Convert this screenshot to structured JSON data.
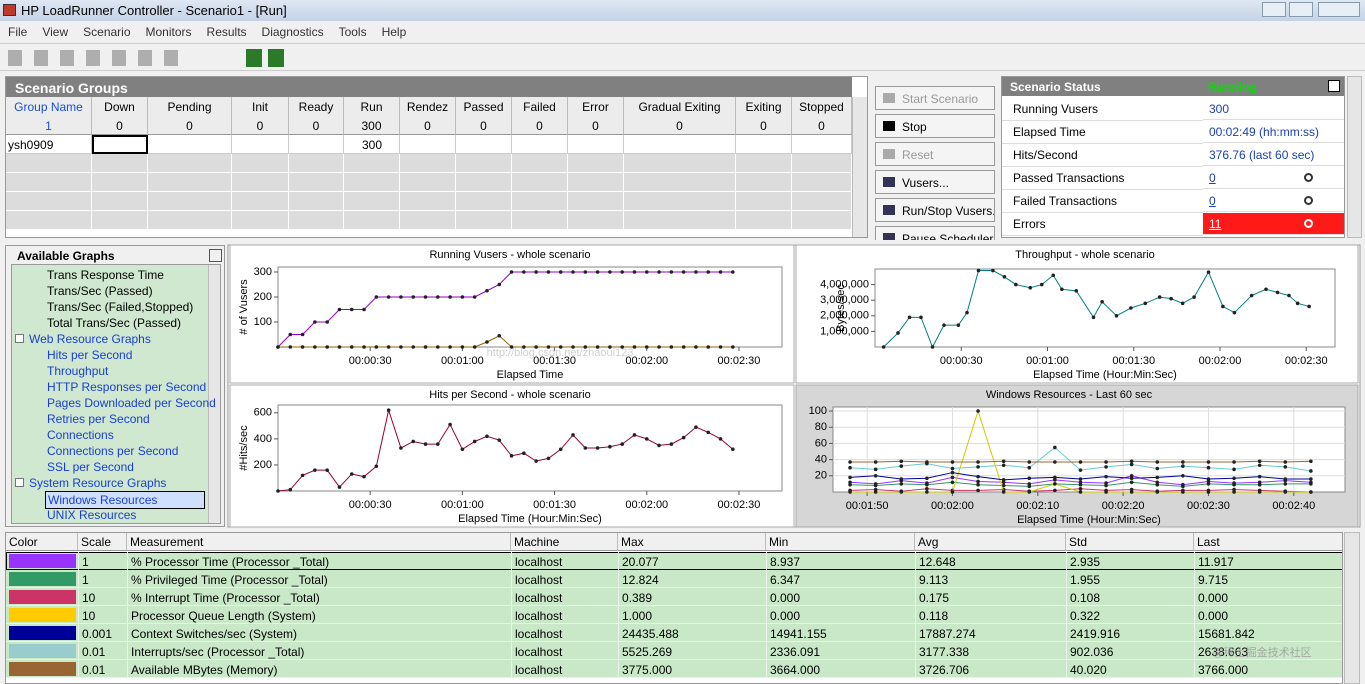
{
  "window": {
    "title": "HP LoadRunner Controller - Scenario1 - [Run]"
  },
  "menu": [
    "File",
    "View",
    "Scenario",
    "Monitors",
    "Results",
    "Diagnostics",
    "Tools",
    "Help"
  ],
  "scenario_groups": {
    "title": "Scenario Groups",
    "columns": [
      "Group Name",
      "Down",
      "Pending",
      "Init",
      "Ready",
      "Run",
      "Rendez",
      "Passed",
      "Failed",
      "Error",
      "Gradual Exiting",
      "Exiting",
      "Stopped"
    ],
    "totals": [
      1,
      0,
      0,
      0,
      0,
      300,
      0,
      0,
      0,
      0,
      0,
      0,
      0
    ],
    "rows": [
      {
        "name": "ysh0909",
        "run": 300
      }
    ]
  },
  "buttons": [
    "Start Scenario",
    "Stop",
    "Reset",
    "Vusers...",
    "Run/Stop Vusers...",
    "Pause Scheduler"
  ],
  "scenario_status": {
    "title": "Scenario Status",
    "state": "Running",
    "rows": [
      {
        "label": "Running Vusers",
        "value": "300"
      },
      {
        "label": "Elapsed Time",
        "value": "00:02:49 (hh:mm:ss)"
      },
      {
        "label": "Hits/Second",
        "value": "376.76 (last 60 sec)"
      },
      {
        "label": "Passed Transactions",
        "value": "0"
      },
      {
        "label": "Failed Transactions",
        "value": "0"
      },
      {
        "label": "Errors",
        "value": "11"
      }
    ]
  },
  "available_graphs": {
    "title": "Available Graphs",
    "tree": [
      {
        "items": [
          "Trans Response Time",
          "Trans/Sec (Passed)",
          "Trans/Sec (Failed,Stopped)",
          "Total Trans/Sec (Passed)"
        ]
      },
      {
        "group": "Web Resource Graphs",
        "items": [
          "Hits per Second",
          "Throughput",
          "HTTP Responses per Second",
          "Pages Downloaded per Second",
          "Retries per Second",
          "Connections",
          "Connections per Second",
          "SSL per Second"
        ]
      },
      {
        "group": "System Resource Graphs",
        "items": [
          "Windows Resources",
          "UNIX Resources"
        ]
      }
    ]
  },
  "graphs": [
    {
      "type": "line",
      "title": "Running Vusers - whole scenario",
      "xlabel": "Elapsed Time",
      "ylabel": "# of Vusers",
      "x": [
        0,
        4,
        8,
        12,
        16,
        20,
        24,
        28,
        32,
        36,
        40,
        44,
        48,
        52,
        56,
        60,
        64,
        68,
        72,
        76,
        80,
        84,
        88,
        92,
        96,
        100,
        104,
        108,
        112,
        116,
        120,
        124,
        128,
        132,
        136,
        140,
        144,
        148
      ],
      "xlim": [
        0,
        164
      ],
      "ylim": [
        0,
        320
      ],
      "xticks": [
        {
          "value": 30,
          "label": "00:00:30"
        },
        {
          "value": 60,
          "label": "00:01:00"
        },
        {
          "value": 90,
          "label": "00:01:30"
        },
        {
          "value": 120,
          "label": "00:02:00"
        },
        {
          "value": 150,
          "label": "00:02:30"
        }
      ],
      "yticks": [
        100,
        200,
        300
      ],
      "series": [
        {
          "color": "#9900cc",
          "values": [
            0,
            50,
            50,
            100,
            100,
            150,
            150,
            150,
            200,
            200,
            200,
            200,
            200,
            200,
            200,
            200,
            200,
            225,
            250,
            300,
            300,
            300,
            300,
            300,
            300,
            300,
            300,
            300,
            300,
            300,
            300,
            300,
            300,
            300,
            300,
            300,
            300,
            300
          ]
        },
        {
          "color": "#996600",
          "values": [
            0,
            0,
            0,
            0,
            0,
            0,
            0,
            0,
            0,
            0,
            0,
            0,
            0,
            0,
            0,
            0,
            0,
            20,
            45,
            0,
            0,
            0,
            0,
            0,
            0,
            0,
            0,
            0,
            0,
            0,
            0,
            0,
            0,
            0,
            0,
            0,
            0,
            0
          ]
        }
      ]
    },
    {
      "type": "line",
      "title": "Throughput - whole scenario",
      "xlabel": "Elapsed Time (Hour:Min:Sec)",
      "ylabel": "Bytes/sec",
      "x": [
        3,
        8,
        12,
        16,
        20,
        24,
        29,
        32,
        36,
        41,
        45,
        49,
        54,
        58,
        62,
        65,
        70,
        76,
        79,
        84,
        89,
        94,
        99,
        103,
        107,
        111,
        116,
        121,
        125,
        131,
        136,
        140,
        144,
        147,
        151
      ],
      "xlim": [
        0,
        160
      ],
      "ylim": [
        0,
        5000000
      ],
      "xticks": [
        {
          "value": 30,
          "label": "00:00:30"
        },
        {
          "value": 60,
          "label": "00:01:00"
        },
        {
          "value": 90,
          "label": "00:01:30"
        },
        {
          "value": 120,
          "label": "00:02:00"
        },
        {
          "value": 150,
          "label": "00:02:30"
        }
      ],
      "yticks": [
        {
          "value": 1000000,
          "label": "1,000,000"
        },
        {
          "value": 2000000,
          "label": "2,000,000"
        },
        {
          "value": 3000000,
          "label": "3,000,000"
        },
        {
          "value": 4000000,
          "label": "4,000,000"
        }
      ],
      "series": [
        {
          "color": "#008080",
          "values": [
            0,
            900000,
            1900000,
            1900000,
            0,
            1400000,
            1400000,
            2200000,
            4900000,
            4900000,
            4500000,
            4000000,
            3800000,
            4000000,
            4600000,
            3700000,
            3600000,
            1900000,
            2900000,
            2000000,
            2500000,
            2800000,
            3200000,
            3100000,
            2800000,
            3200000,
            4800000,
            2600000,
            2200000,
            3300000,
            3700000,
            3500000,
            3300000,
            2800000,
            2600000
          ]
        }
      ]
    },
    {
      "type": "line",
      "title": "Hits per Second - whole scenario",
      "xlabel": "Elapsed Time (Hour:Min:Sec)",
      "ylabel": "#Hits/sec",
      "x": [
        0,
        4,
        8,
        12,
        16,
        20,
        24,
        28,
        32,
        36,
        40,
        44,
        48,
        52,
        56,
        60,
        64,
        68,
        72,
        76,
        80,
        84,
        88,
        92,
        96,
        100,
        104,
        108,
        112,
        116,
        120,
        124,
        128,
        132,
        136,
        140,
        144,
        148
      ],
      "xlim": [
        0,
        164
      ],
      "ylim": [
        0,
        660
      ],
      "xticks": [
        {
          "value": 30,
          "label": "00:00:30"
        },
        {
          "value": 60,
          "label": "00:01:00"
        },
        {
          "value": 90,
          "label": "00:01:30"
        },
        {
          "value": 120,
          "label": "00:02:00"
        },
        {
          "value": 150,
          "label": "00:02:30"
        }
      ],
      "yticks": [
        200,
        400,
        600
      ],
      "series": [
        {
          "color": "#990033",
          "values": [
            0,
            10,
            120,
            160,
            160,
            30,
            130,
            110,
            190,
            620,
            330,
            380,
            360,
            360,
            510,
            320,
            380,
            420,
            390,
            270,
            290,
            230,
            250,
            320,
            430,
            330,
            330,
            340,
            360,
            430,
            400,
            350,
            360,
            410,
            490,
            450,
            400,
            320
          ]
        }
      ]
    },
    {
      "type": "line",
      "title": "Windows Resources - Last 60 sec",
      "xlabel": "Elapsed Time (Hour:Min:Sec)",
      "x": [
        108,
        111,
        114,
        117,
        120,
        123,
        126,
        129,
        132,
        135,
        138,
        141,
        144,
        147,
        150,
        153,
        156,
        159,
        162
      ],
      "xlim": [
        106,
        166
      ],
      "ylim": [
        0,
        105
      ],
      "xticks": [
        {
          "value": 110,
          "label": "00:01:50"
        },
        {
          "value": 120,
          "label": "00:02:00"
        },
        {
          "value": 130,
          "label": "00:02:10"
        },
        {
          "value": 140,
          "label": "00:02:20"
        },
        {
          "value": 150,
          "label": "00:02:30"
        },
        {
          "value": 160,
          "label": "00:02:40"
        }
      ],
      "yticks": [
        20,
        40,
        60,
        80,
        100
      ],
      "series": [
        {
          "color": "#9933ff",
          "values": [
            12,
            10,
            14,
            11,
            18,
            13,
            12,
            10,
            15,
            12,
            11,
            20,
            12,
            9,
            13,
            11,
            12,
            14,
            12
          ]
        },
        {
          "color": "#339966",
          "values": [
            9,
            8,
            10,
            9,
            12,
            9,
            8,
            7,
            10,
            9,
            8,
            12,
            9,
            7,
            10,
            9,
            9,
            10,
            10
          ]
        },
        {
          "color": "#cc3366",
          "values": [
            2,
            3,
            1,
            4,
            2,
            2,
            3,
            1,
            2,
            4,
            2,
            3,
            1,
            2,
            2,
            3,
            2,
            1,
            0
          ]
        },
        {
          "color": "#cccc00",
          "values": [
            0,
            0,
            0,
            0,
            0,
            100,
            0,
            0,
            10,
            0,
            0,
            0,
            0,
            0,
            0,
            0,
            0,
            0,
            0
          ]
        },
        {
          "color": "#000099",
          "values": [
            18,
            20,
            16,
            17,
            24,
            19,
            15,
            17,
            18,
            16,
            19,
            17,
            18,
            20,
            16,
            17,
            19,
            16,
            16
          ]
        },
        {
          "color": "#66cccc",
          "values": [
            30,
            28,
            32,
            35,
            29,
            31,
            33,
            30,
            55,
            27,
            31,
            34,
            29,
            32,
            30,
            28,
            33,
            31,
            26
          ]
        },
        {
          "color": "#996633",
          "values": [
            37,
            37,
            38,
            37,
            37,
            37,
            38,
            37,
            37,
            37,
            37,
            38,
            37,
            37,
            37,
            37,
            38,
            37,
            38
          ]
        }
      ]
    }
  ],
  "measurements": {
    "columns": [
      "Color",
      "Scale",
      "Measurement",
      "Machine",
      "Max",
      "Min",
      "Avg",
      "Std",
      "Last"
    ],
    "rows": [
      {
        "color": "#9933ff",
        "scale": "1",
        "measurement": "% Processor Time (Processor _Total)",
        "machine": "localhost",
        "max": "20.077",
        "min": "8.937",
        "avg": "12.648",
        "std": "2.935",
        "last": "11.917"
      },
      {
        "color": "#339966",
        "scale": "1",
        "measurement": "% Privileged Time (Processor _Total)",
        "machine": "localhost",
        "max": "12.824",
        "min": "6.347",
        "avg": "9.113",
        "std": "1.955",
        "last": "9.715"
      },
      {
        "color": "#cc3366",
        "scale": "10",
        "measurement": "% Interrupt Time (Processor _Total)",
        "machine": "localhost",
        "max": "0.389",
        "min": "0.000",
        "avg": "0.175",
        "std": "0.108",
        "last": "0.000"
      },
      {
        "color": "#ffcc00",
        "scale": "10",
        "measurement": "Processor Queue Length (System)",
        "machine": "localhost",
        "max": "1.000",
        "min": "0.000",
        "avg": "0.118",
        "std": "0.322",
        "last": "0.000"
      },
      {
        "color": "#000099",
        "scale": "0.001",
        "measurement": "Context Switches/sec (System)",
        "machine": "localhost",
        "max": "24435.488",
        "min": "14941.155",
        "avg": "17887.274",
        "std": "2419.916",
        "last": "15681.842"
      },
      {
        "color": "#99cccc",
        "scale": "0.01",
        "measurement": "Interrupts/sec (Processor _Total)",
        "machine": "localhost",
        "max": "5525.269",
        "min": "2336.091",
        "avg": "3177.338",
        "std": "902.036",
        "last": "2638.663"
      },
      {
        "color": "#996633",
        "scale": "0.01",
        "measurement": "Available MBytes (Memory)",
        "machine": "localhost",
        "max": "3775.000",
        "min": "3664.000",
        "avg": "3726.706",
        "std": "40.020",
        "last": "3766.000"
      }
    ]
  },
  "watermarks": [
    "http://blog.csdn.net/zhaoui123",
    "@稀土掘金技术社区"
  ]
}
